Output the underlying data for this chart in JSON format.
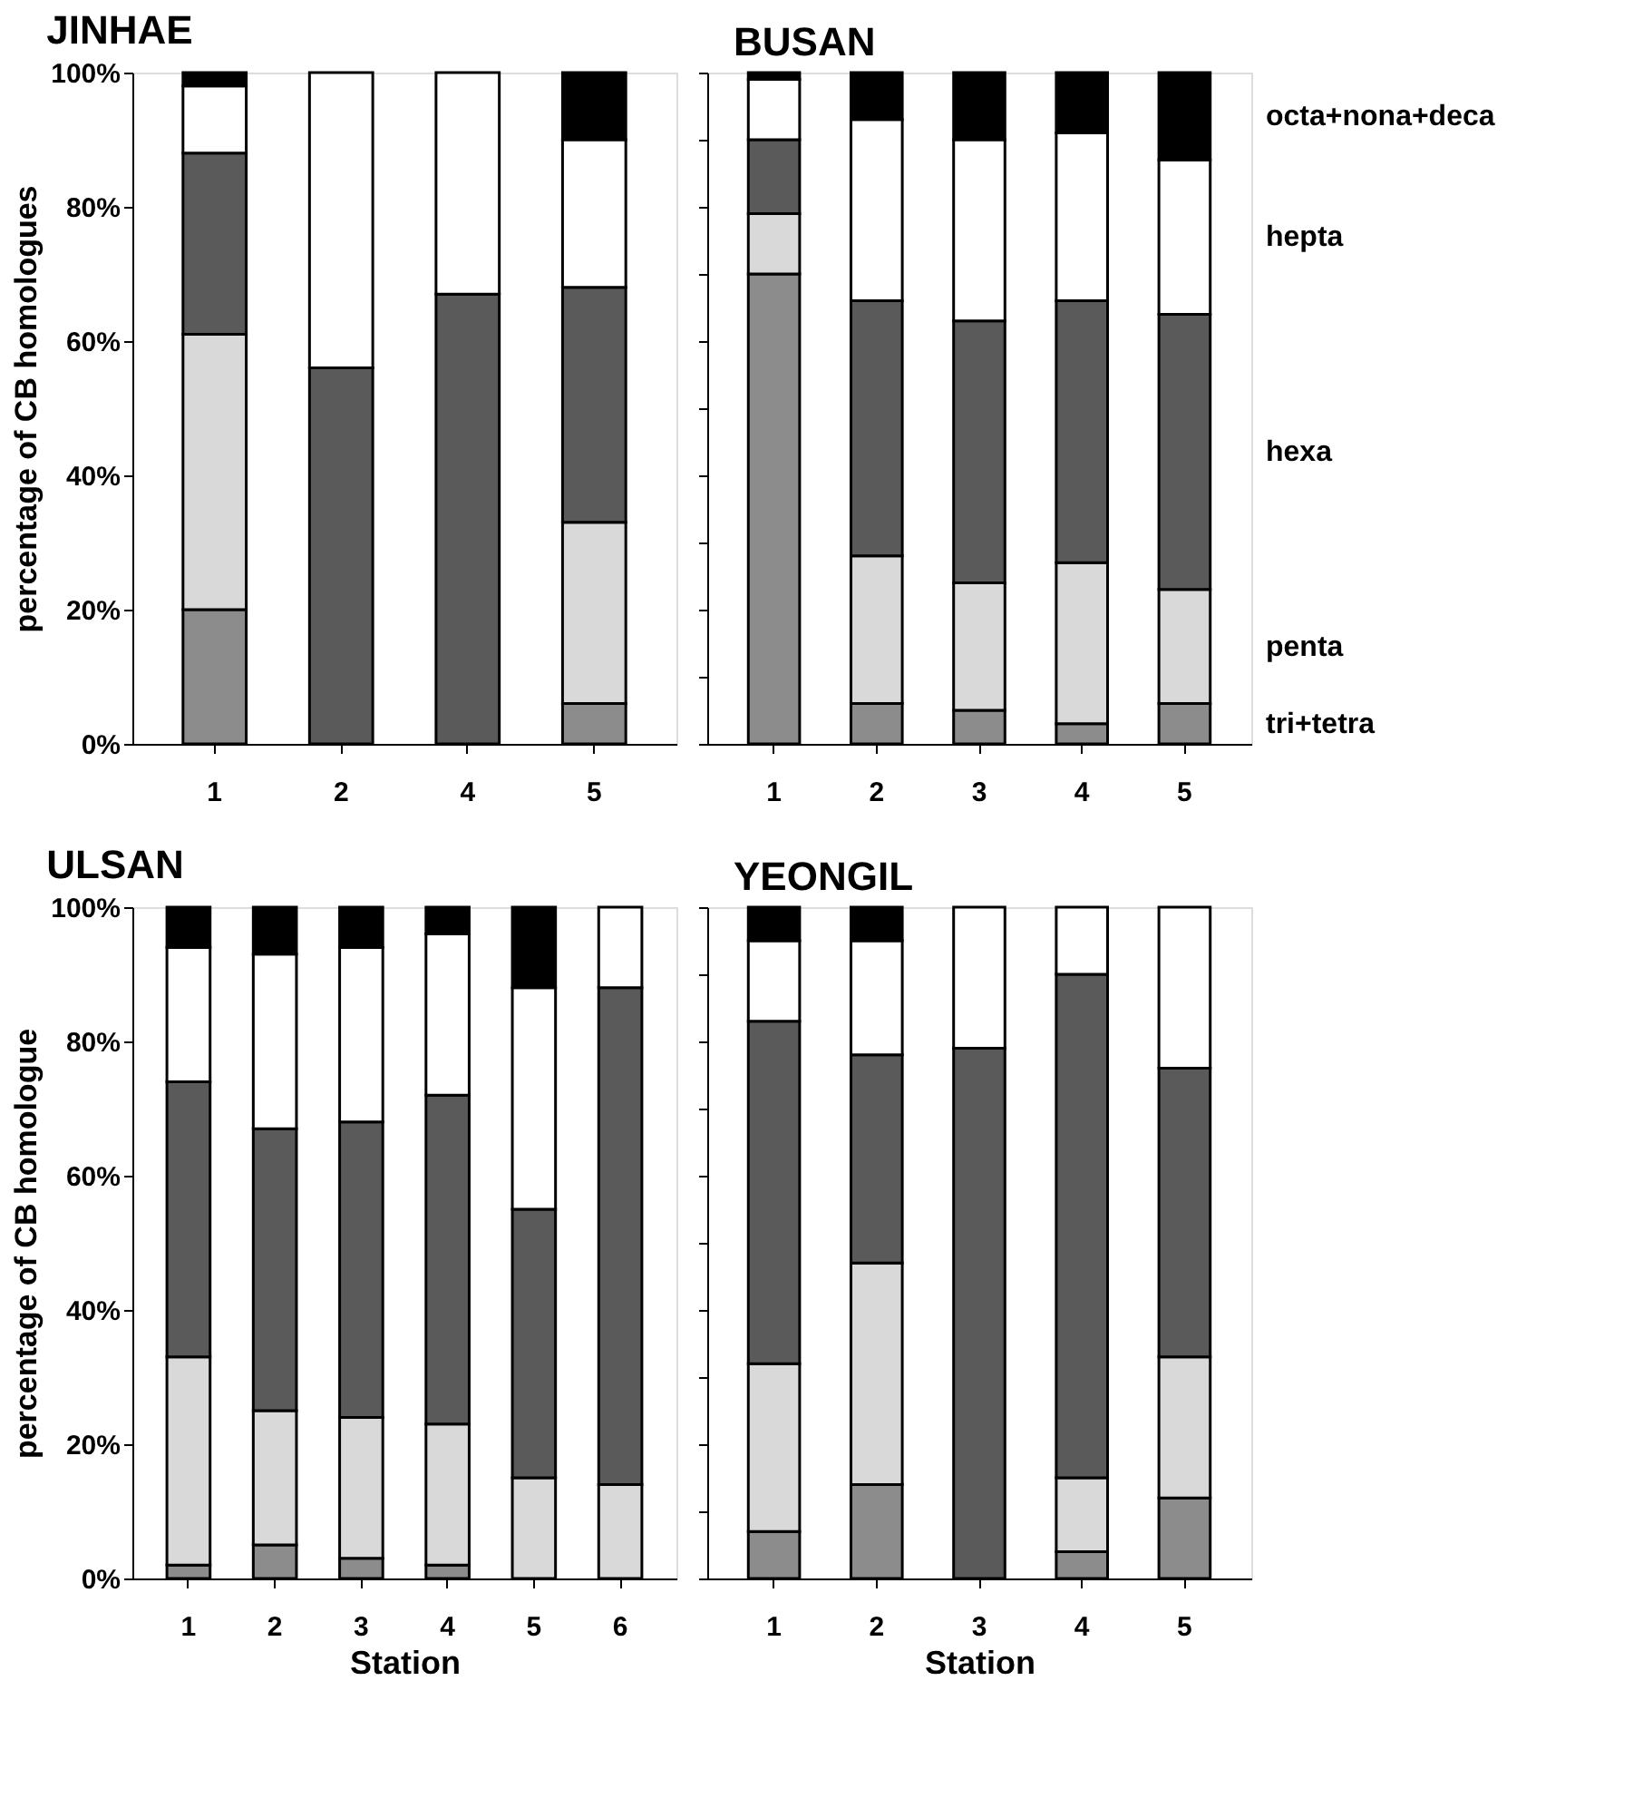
{
  "chart_data": [
    {
      "type": "bar",
      "stacked": true,
      "title": "JINHAE",
      "ylabel": "percentage of CB homologues",
      "categories": [
        "1",
        "2",
        "4",
        "5"
      ],
      "ylim": [
        0,
        100
      ],
      "yticks": [
        {
          "value": 0,
          "label": "0%"
        },
        {
          "value": 20,
          "label": "20%"
        },
        {
          "value": 40,
          "label": "40%"
        },
        {
          "value": 60,
          "label": "60%"
        },
        {
          "value": 80,
          "label": "80%"
        },
        {
          "value": 100,
          "label": "100%"
        }
      ],
      "grid": false,
      "legend": false,
      "series": [
        {
          "color": "#8c8c8c",
          "values": [
            20,
            null,
            null,
            6
          ]
        },
        {
          "color": "#d9d9d9",
          "values": [
            41,
            null,
            null,
            27
          ]
        },
        {
          "color": "#5a5a5a",
          "values": [
            27,
            56,
            67,
            35
          ]
        },
        {
          "color": "#ffffff",
          "values": [
            10,
            44,
            33,
            22
          ]
        },
        {
          "color": "#000000",
          "values": [
            2,
            null,
            null,
            10
          ]
        }
      ]
    },
    {
      "type": "bar",
      "stacked": true,
      "title": "BUSAN",
      "categories": [
        "1",
        "2",
        "3",
        "4",
        "5"
      ],
      "ylim": [
        0,
        100
      ],
      "yticks": [
        0,
        10,
        20,
        30,
        40,
        50,
        60,
        70,
        80,
        90,
        100
      ],
      "tick_labels": "x",
      "grid": false,
      "legend": false,
      "series": [
        {
          "name": "tri+tetra",
          "color": "#8c8c8c",
          "values": [
            70,
            6,
            5,
            3,
            6
          ]
        },
        {
          "name": "penta",
          "color": "#d9d9d9",
          "values": [
            9,
            22,
            19,
            24,
            17
          ]
        },
        {
          "name": "hexa",
          "color": "#5a5a5a",
          "values": [
            11,
            38,
            39,
            39,
            41
          ]
        },
        {
          "name": "hepta",
          "color": "#ffffff",
          "values": [
            9,
            27,
            27,
            25,
            23
          ]
        },
        {
          "name": "octa+nona+deca",
          "color": "#000000",
          "values": [
            1,
            7,
            10,
            9,
            13
          ]
        }
      ]
    },
    {
      "type": "bar",
      "stacked": true,
      "title": "ULSAN",
      "ylabel": "percentage of CB homologue",
      "xlabel": "Station",
      "categories": [
        "1",
        "2",
        "3",
        "4",
        "5",
        "6"
      ],
      "ylim": [
        0,
        100
      ],
      "yticks": [
        {
          "value": 0,
          "label": "0%"
        },
        {
          "value": 20,
          "label": "20%"
        },
        {
          "value": 40,
          "label": "40%"
        },
        {
          "value": 60,
          "label": "60%"
        },
        {
          "value": 80,
          "label": "80%"
        },
        {
          "value": 100,
          "label": "100%"
        }
      ],
      "grid": false,
      "legend": false,
      "series": [
        {
          "color": "#8c8c8c",
          "values": [
            2,
            5,
            3,
            2,
            null,
            null
          ]
        },
        {
          "color": "#d9d9d9",
          "values": [
            31,
            20,
            21,
            21,
            15,
            14
          ]
        },
        {
          "color": "#5a5a5a",
          "values": [
            41,
            42,
            44,
            49,
            40,
            74
          ]
        },
        {
          "color": "#ffffff",
          "values": [
            20,
            26,
            26,
            24,
            33,
            12
          ]
        },
        {
          "color": "#000000",
          "values": [
            6,
            7,
            6,
            4,
            12,
            null
          ]
        }
      ]
    },
    {
      "type": "bar",
      "stacked": true,
      "title": "YEONGIL",
      "xlabel": "Station",
      "categories": [
        "1",
        "2",
        "3",
        "4",
        "5"
      ],
      "ylim": [
        0,
        100
      ],
      "yticks": [
        0,
        10,
        20,
        30,
        40,
        50,
        60,
        70,
        80,
        90,
        100
      ],
      "tick_labels": "x",
      "grid": false,
      "legend": false,
      "series": [
        {
          "color": "#8c8c8c",
          "values": [
            7,
            14,
            null,
            4,
            12
          ]
        },
        {
          "color": "#d9d9d9",
          "values": [
            25,
            33,
            null,
            11,
            21
          ]
        },
        {
          "color": "#5a5a5a",
          "values": [
            51,
            31,
            79,
            75,
            43
          ]
        },
        {
          "color": "#ffffff",
          "values": [
            12,
            17,
            21,
            10,
            24
          ]
        },
        {
          "color": "#000000",
          "values": [
            5,
            5,
            null,
            null,
            null
          ]
        }
      ]
    }
  ]
}
